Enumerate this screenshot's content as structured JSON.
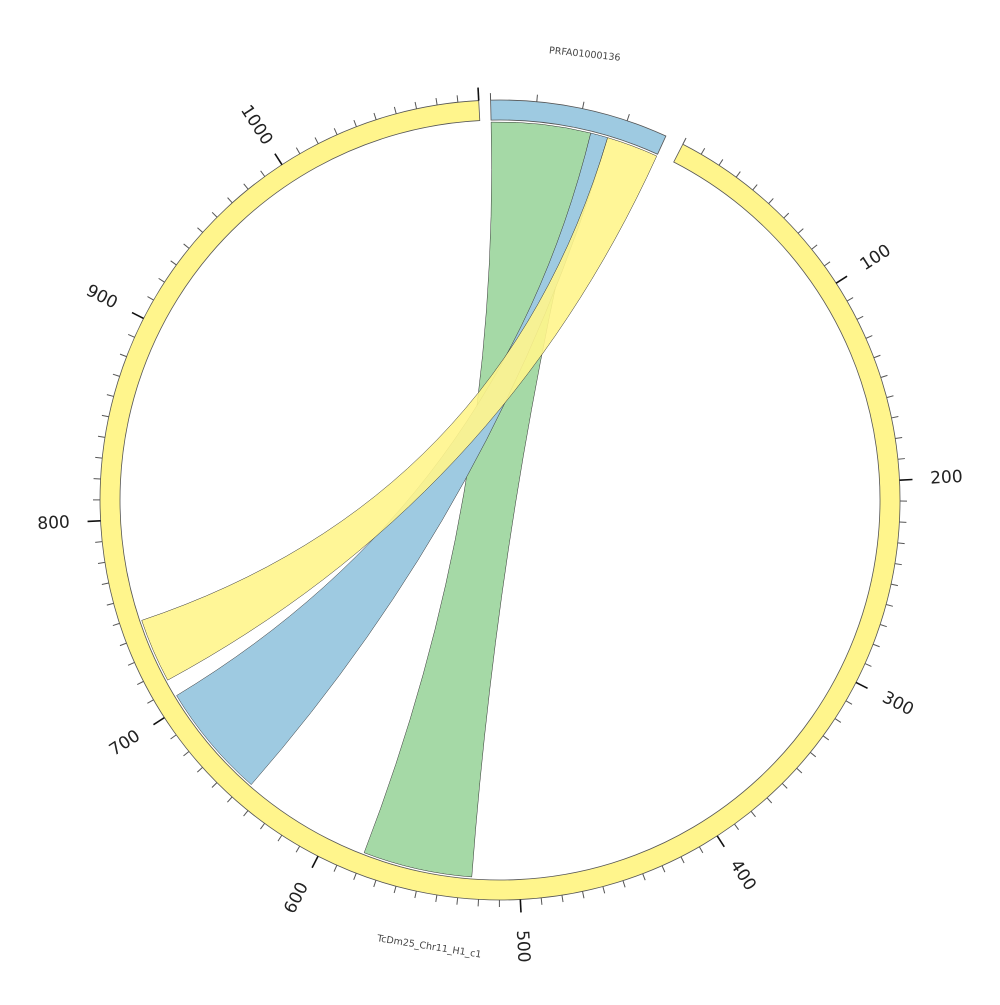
{
  "colors": {
    "chr_fill": "#fff58c",
    "contig_fill": "#9ecae1",
    "link_green": "#74c476",
    "link_blue": "#9ecae1",
    "link_yellow": "#fff58c"
  },
  "segments": [
    {
      "id": "contig",
      "label": "PRFA01000136",
      "length": 39,
      "color": "contig_fill"
    },
    {
      "id": "chr",
      "label": "TcDm25_Chr11_H1_c1",
      "length": 1100,
      "color": "chr_fill"
    }
  ],
  "ticks": {
    "minor_step": 10,
    "major_step": 100,
    "labels": [
      "100",
      "200",
      "300",
      "400",
      "500",
      "600",
      "700",
      "800",
      "900",
      "1000"
    ]
  },
  "links": [
    {
      "name": "green",
      "color": "link_green",
      "opacity": 0.65,
      "a": {
        "seg": "contig",
        "from": 0,
        "to": 23
      },
      "b": {
        "seg": "chr",
        "from": 524,
        "to": 580
      }
    },
    {
      "name": "blue",
      "color": "link_blue",
      "opacity": 1.0,
      "a": {
        "seg": "contig",
        "from": 23,
        "to": 27
      },
      "b": {
        "seg": "chr",
        "from": 647,
        "to": 706
      }
    },
    {
      "name": "yellow",
      "color": "link_yellow",
      "opacity": 0.9,
      "a": {
        "seg": "contig",
        "from": 27,
        "to": 39
      },
      "b": {
        "seg": "chr",
        "from": 715,
        "to": 748
      }
    }
  ]
}
